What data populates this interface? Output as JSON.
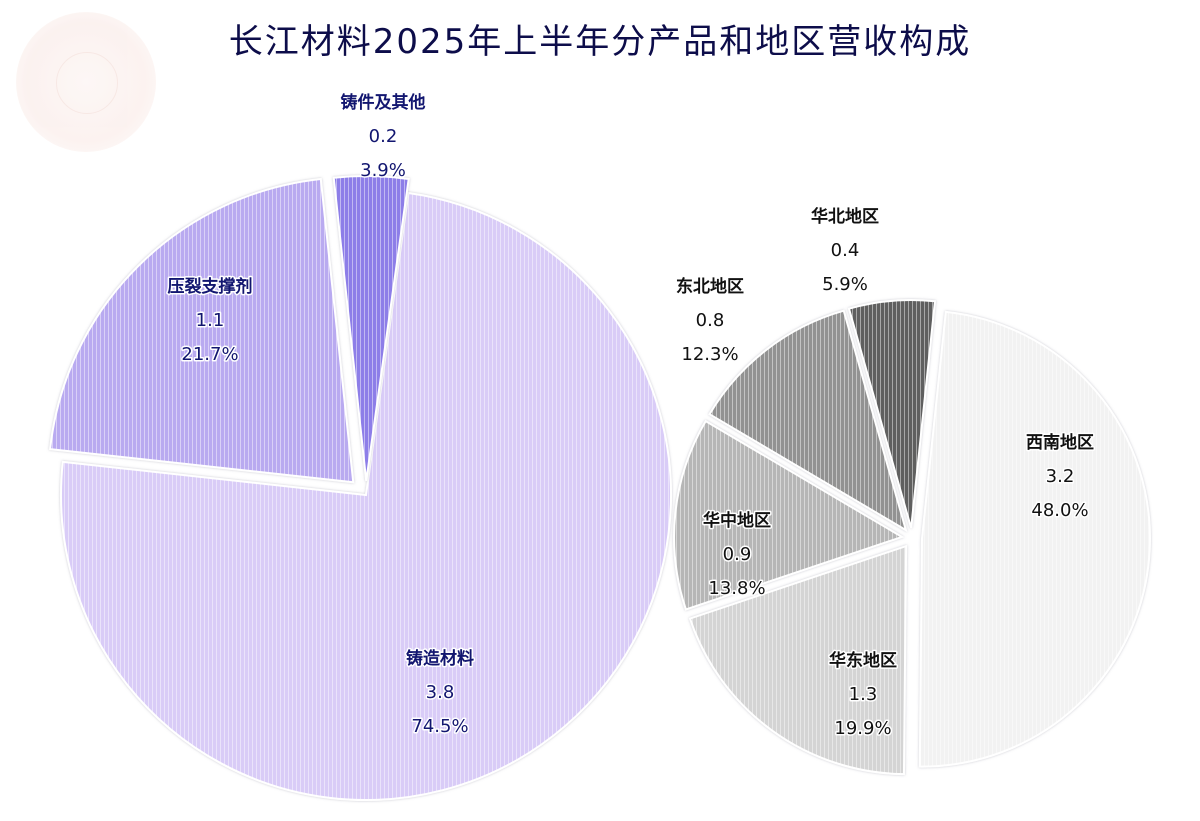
{
  "chart_data": [
    {
      "type": "pie",
      "title": "长江材料2025年上半年分产品和地区营收构成",
      "slices": [
        {
          "label": "铸造材料",
          "value": 3.8,
          "percent": "74.5%",
          "value_text": "3.8",
          "color": "#d9ccf7"
        },
        {
          "label": "压裂支撑剂",
          "value": 1.1,
          "percent": "21.7%",
          "value_text": "1.1",
          "color": "#b9aaf0"
        },
        {
          "label": "铸件及其他",
          "value": 0.2,
          "percent": "3.9%",
          "value_text": "0.2",
          "color": "#8d7ee8"
        }
      ]
    },
    {
      "type": "pie",
      "slices": [
        {
          "label": "西南地区",
          "value": 3.2,
          "percent": "48.0%",
          "value_text": "3.2",
          "color": "#f2f2f2"
        },
        {
          "label": "华东地区",
          "value": 1.3,
          "percent": "19.9%",
          "value_text": "1.3",
          "color": "#d4d4d4"
        },
        {
          "label": "华中地区",
          "value": 0.9,
          "percent": "13.8%",
          "value_text": "0.9",
          "color": "#b6b6b6"
        },
        {
          "label": "东北地区",
          "value": 0.8,
          "percent": "12.3%",
          "value_text": "0.8",
          "color": "#929292"
        },
        {
          "label": "华北地区",
          "value": 0.4,
          "percent": "5.9%",
          "value_text": "0.4",
          "color": "#5e5e5e"
        }
      ]
    }
  ]
}
